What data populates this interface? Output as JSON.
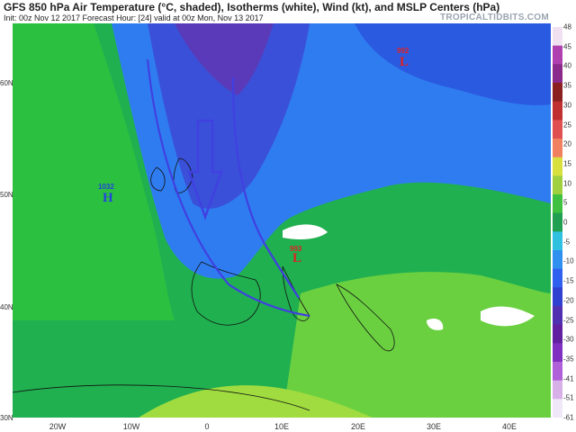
{
  "header": {
    "title": "GFS 850 hPa Air Temperature (°C, shaded), Isotherms (white), Wind (kt), and MSLP Centers (hPa)",
    "subtitle": "Init: 00z Nov 12 2017   Forecast Hour: [24]   valid at 00z Mon, Nov 13 2017",
    "brand": "TROPICALTIDBITS.COM"
  },
  "longitude_labels": [
    "20W",
    "10W",
    "0",
    "10E",
    "20E",
    "30E",
    "40E"
  ],
  "latitude_labels": [
    "60N",
    "50N",
    "40N",
    "30N"
  ],
  "colorbar": {
    "ticks": [
      "48",
      "45",
      "40",
      "35",
      "30",
      "25",
      "20",
      "15",
      "10",
      "5",
      "0",
      "-5",
      "-10",
      "-15",
      "-20",
      "-25",
      "-30",
      "-35",
      "-41",
      "-51",
      "-61"
    ],
    "colors": [
      "#f0e0f0",
      "#b040b0",
      "#8a2a8a",
      "#8a2020",
      "#c03030",
      "#e05050",
      "#f08060",
      "#d8e040",
      "#a0d040",
      "#40c040",
      "#20a050",
      "#30c0e0",
      "#3090f0",
      "#3060f0",
      "#3040d0",
      "#5030b0",
      "#6020a0",
      "#8030c0",
      "#b060d8",
      "#d8b0e8",
      "#f0e8f8"
    ]
  },
  "pressure_centers": [
    {
      "symbol": "H",
      "value": "1032",
      "color": "#2244dd"
    },
    {
      "symbol": "L",
      "value": "993",
      "color": "#dd2222"
    },
    {
      "symbol": "L",
      "value": "992",
      "color": "#dd2222"
    }
  ]
}
